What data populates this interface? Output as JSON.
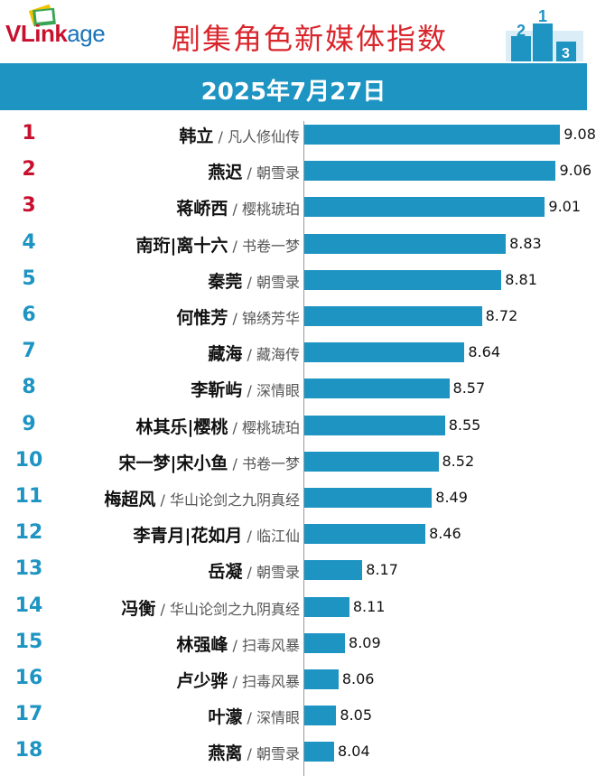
{
  "header": {
    "logo_primary": "VLink",
    "logo_secondary": "age",
    "title": "剧集角色新媒体指数",
    "date": "2025年7月27日"
  },
  "colors": {
    "bar": "#1e94c2",
    "rank_top3": "#c8102e",
    "rank_other": "#1e94c2",
    "title": "#d9262c"
  },
  "chart_data": {
    "type": "bar",
    "orientation": "horizontal",
    "title": "剧集角色新媒体指数",
    "subtitle": "2025年7月27日",
    "xlim": [
      6.0,
      9.2
    ],
    "rows": [
      {
        "rank": "1",
        "character": "韩立",
        "show": "凡人修仙传",
        "value": 9.08
      },
      {
        "rank": "2",
        "character": "燕迟",
        "show": "朝雪录",
        "value": 9.06
      },
      {
        "rank": "3",
        "character": "蒋峤西",
        "show": "樱桃琥珀",
        "value": 9.01
      },
      {
        "rank": "4",
        "character": "南珩|离十六",
        "show": "书卷一梦",
        "value": 8.83
      },
      {
        "rank": "5",
        "character": "秦莞",
        "show": "朝雪录",
        "value": 8.81
      },
      {
        "rank": "6",
        "character": "何惟芳",
        "show": "锦绣芳华",
        "value": 8.72
      },
      {
        "rank": "7",
        "character": "藏海",
        "show": "藏海传",
        "value": 8.64
      },
      {
        "rank": "8",
        "character": "李靳屿",
        "show": "深情眼",
        "value": 8.57
      },
      {
        "rank": "9",
        "character": "林其乐|樱桃",
        "show": "樱桃琥珀",
        "value": 8.55
      },
      {
        "rank": "10",
        "character": "宋一梦|宋小鱼",
        "show": "书卷一梦",
        "value": 8.52
      },
      {
        "rank": "11",
        "character": "梅超风",
        "show": "华山论剑之九阴真经",
        "value": 8.49
      },
      {
        "rank": "12",
        "character": "李青月|花如月",
        "show": "临江仙",
        "value": 8.46
      },
      {
        "rank": "13",
        "character": "岳凝",
        "show": "朝雪录",
        "value": 8.17
      },
      {
        "rank": "14",
        "character": "冯衡",
        "show": "华山论剑之九阴真经",
        "value": 8.11
      },
      {
        "rank": "15",
        "character": "林强峰",
        "show": "扫毒风暴",
        "value": 8.09
      },
      {
        "rank": "16",
        "character": "卢少骅",
        "show": "扫毒风暴",
        "value": 8.06
      },
      {
        "rank": "17",
        "character": "叶濛",
        "show": "深情眼",
        "value": 8.05
      },
      {
        "rank": "18",
        "character": "燕离",
        "show": "朝雪录",
        "value": 8.04
      }
    ]
  }
}
